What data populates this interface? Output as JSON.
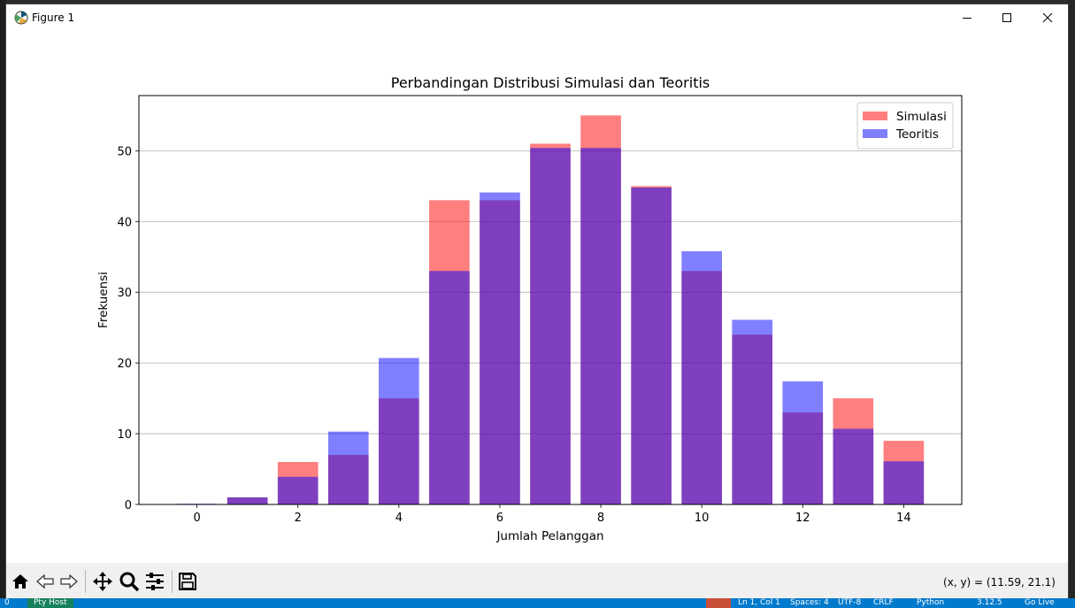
{
  "window": {
    "title": "Figure 1",
    "coords_readout": "(x, y) = (11.59, 21.1)"
  },
  "toolbar": {
    "buttons": [
      "home-icon",
      "back-arrow-icon",
      "forward-arrow-icon",
      "pan-icon",
      "zoom-icon",
      "configure-subplots-icon",
      "save-icon"
    ]
  },
  "statusbar": {
    "errors": "0",
    "pty_host": "Pty Host",
    "position": "Ln 1, Col 1",
    "spaces": "Spaces: 4",
    "encoding": "UTF-8",
    "eol": "CRLF",
    "language": "Python",
    "version": "3.12.5",
    "go_live": "Go Live"
  },
  "chart_data": {
    "type": "bar",
    "title": "Perbandingan Distribusi Simulasi dan Teoritis",
    "xlabel": "Jumlah Pelanggan",
    "ylabel": "Frekuensi",
    "x": [
      0,
      1,
      2,
      3,
      4,
      5,
      6,
      7,
      8,
      9,
      10,
      11,
      12,
      13,
      14
    ],
    "xticks": [
      0,
      2,
      4,
      6,
      8,
      10,
      12,
      14
    ],
    "yticks": [
      0,
      10,
      20,
      30,
      40,
      50
    ],
    "xlim": [
      -1.15,
      15.15
    ],
    "ylim": [
      0,
      57.8
    ],
    "grid": "y",
    "legend_position": "top-right",
    "series": [
      {
        "name": "Simulasi",
        "color": "#ff0000",
        "opacity": 0.5,
        "values": [
          0,
          1,
          6,
          7,
          15,
          43,
          43,
          51,
          55,
          45,
          33,
          24,
          13,
          15,
          9
        ]
      },
      {
        "name": "Teoritis",
        "color": "#0000ff",
        "opacity": 0.5,
        "values": [
          0.1,
          1,
          3.9,
          10.3,
          20.7,
          33,
          44.1,
          50.4,
          50.4,
          44.8,
          35.8,
          26.1,
          17.4,
          10.7,
          6.1
        ]
      }
    ]
  }
}
